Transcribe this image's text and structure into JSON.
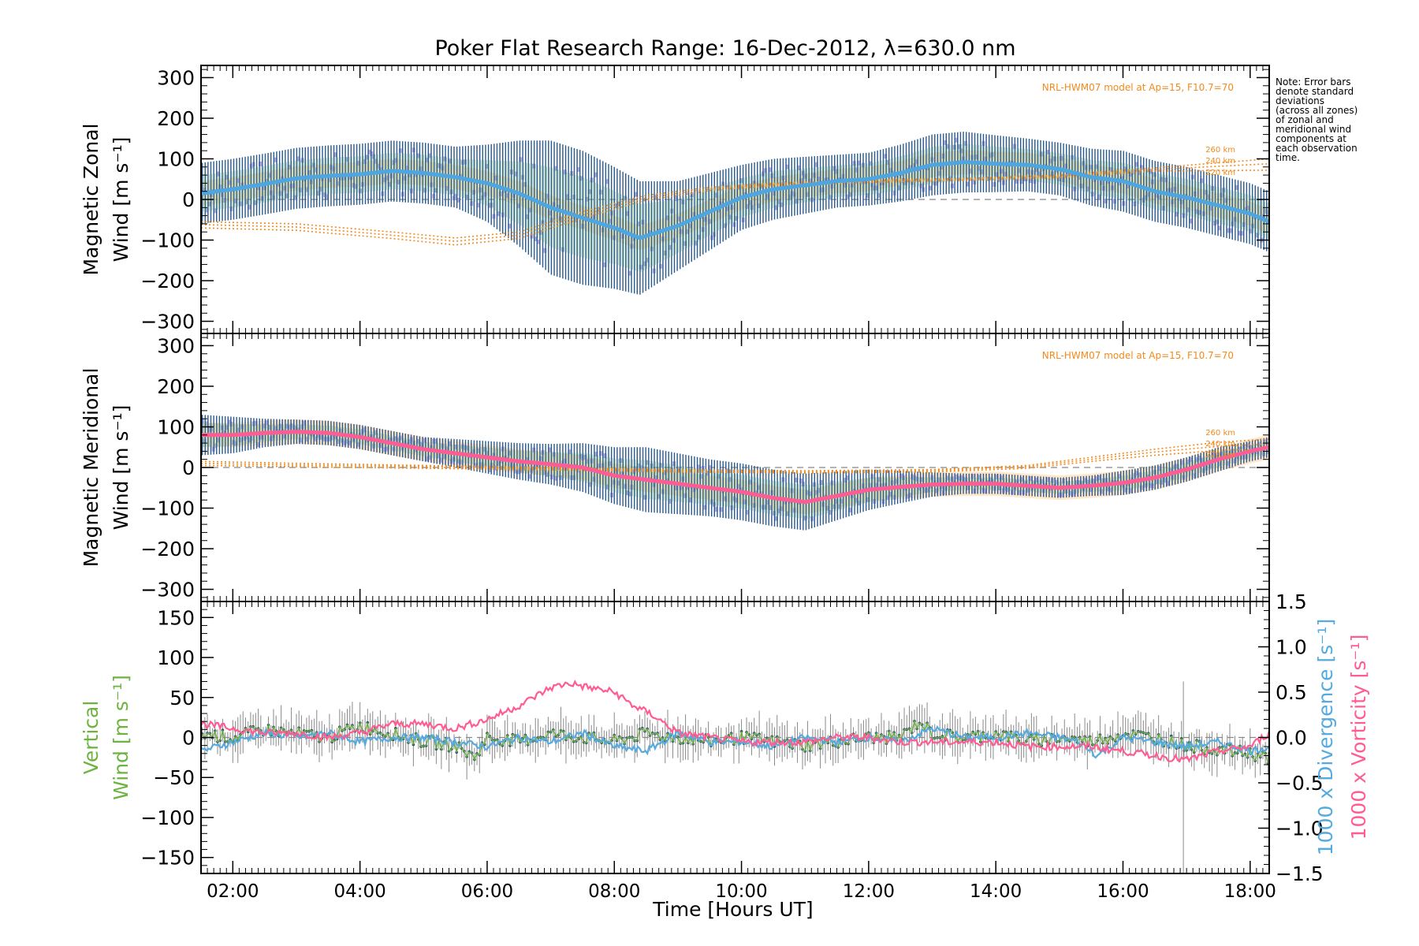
{
  "title": "Poker Flat Research Range: 16-Dec-2012, λ=630.0 nm",
  "note": [
    "Note: Error bars",
    "denote standard",
    "deviations",
    "(across all zones)",
    "of zonal and",
    "meridional wind",
    "components at",
    "each observation",
    "time."
  ],
  "xlabel": "Time [Hours UT]",
  "colors": {
    "zonal_mean": "#4da6e0",
    "meridional_mean": "#ff5c93",
    "error_bar": "#2a5a8c",
    "zone_scatter": "#b3abe6",
    "model": "#f28a1c",
    "vertical": "#6db33f",
    "divergence": "#55aadf",
    "vorticity": "#ff5c93",
    "zero_line": "#888888"
  },
  "chart_data": [
    {
      "type": "line",
      "panel": "zonal",
      "ylabel_line1": "Magnetic Zonal",
      "ylabel_line2": "Wind [m s⁻¹]",
      "ylim": [
        -330,
        330
      ],
      "yticks": [
        300,
        200,
        100,
        0,
        -100,
        -200,
        -300
      ],
      "xlim": [
        1.5,
        18.3
      ],
      "model_label": "NRL-HWM07 model at Ap=15, F10.7=70",
      "model_altitudes": [
        "260 km",
        "240 km",
        "220 km"
      ],
      "series": [
        {
          "role": "mean",
          "x": [
            1.5,
            2.0,
            2.5,
            3.0,
            3.5,
            4.0,
            4.5,
            5.0,
            5.5,
            6.0,
            6.5,
            7.0,
            7.5,
            8.0,
            8.4,
            9.0,
            9.5,
            10.0,
            10.5,
            11.0,
            11.5,
            12.0,
            12.5,
            13.0,
            13.5,
            14.0,
            14.5,
            15.0,
            15.5,
            16.0,
            16.5,
            17.0,
            17.5,
            18.0,
            18.3
          ],
          "values": [
            15,
            25,
            38,
            52,
            58,
            62,
            70,
            65,
            55,
            40,
            15,
            -20,
            -45,
            -70,
            -95,
            -65,
            -30,
            5,
            25,
            35,
            45,
            50,
            65,
            85,
            92,
            88,
            85,
            75,
            55,
            45,
            20,
            5,
            -15,
            -35,
            -55
          ],
          "spread": [
            75,
            75,
            75,
            75,
            75,
            75,
            75,
            75,
            75,
            95,
            130,
            165,
            165,
            150,
            140,
            110,
            95,
            80,
            75,
            70,
            65,
            65,
            70,
            75,
            75,
            70,
            65,
            65,
            70,
            75,
            75,
            75,
            75,
            75,
            75
          ]
        }
      ],
      "model": [
        {
          "altitude": "260 km",
          "x": [
            1.5,
            3,
            4.5,
            5.5,
            6.5,
            7.5,
            8.5,
            9.5,
            10.5,
            12,
            13.5,
            15,
            16.5,
            18.3
          ],
          "values": [
            -55,
            -60,
            -80,
            -95,
            -80,
            -30,
            10,
            30,
            40,
            48,
            52,
            60,
            78,
            100
          ]
        },
        {
          "altitude": "240 km",
          "x": [
            1.5,
            3,
            4.5,
            5.5,
            6.5,
            7.5,
            8.5,
            9.5,
            10.5,
            12,
            13.5,
            15,
            16.5,
            18.3
          ],
          "values": [
            -62,
            -68,
            -88,
            -103,
            -88,
            -38,
            4,
            26,
            37,
            45,
            50,
            57,
            74,
            88
          ]
        },
        {
          "altitude": "220 km",
          "x": [
            1.5,
            3,
            4.5,
            5.5,
            6.5,
            7.5,
            8.5,
            9.5,
            10.5,
            12,
            13.5,
            15,
            16.5,
            18.3
          ],
          "values": [
            -70,
            -76,
            -96,
            -112,
            -96,
            -46,
            -2,
            22,
            34,
            42,
            47,
            54,
            70,
            72
          ]
        }
      ]
    },
    {
      "type": "line",
      "panel": "meridional",
      "ylabel_line1": "Magnetic Meridional",
      "ylabel_line2": "Wind [m s⁻¹]",
      "ylim": [
        -330,
        330
      ],
      "yticks": [
        300,
        200,
        100,
        0,
        -100,
        -200,
        -300
      ],
      "xlim": [
        1.5,
        18.3
      ],
      "model_label": "NRL-HWM07 model at Ap=15, F10.7=70",
      "model_altitudes": [
        "260 km",
        "240 km",
        "220 km"
      ],
      "series": [
        {
          "role": "mean",
          "x": [
            1.5,
            2.0,
            2.5,
            3.0,
            3.5,
            4.0,
            4.5,
            5.0,
            5.5,
            6.0,
            6.5,
            7.0,
            7.5,
            8.0,
            8.5,
            9.0,
            9.5,
            10.0,
            10.5,
            11.0,
            11.5,
            12.0,
            12.5,
            13.0,
            13.5,
            14.0,
            14.5,
            15.0,
            15.5,
            16.0,
            16.5,
            17.0,
            17.5,
            18.0,
            18.3
          ],
          "values": [
            80,
            80,
            85,
            88,
            85,
            75,
            60,
            45,
            35,
            25,
            15,
            8,
            0,
            -20,
            -30,
            -40,
            -50,
            -60,
            -75,
            -85,
            -70,
            -55,
            -48,
            -42,
            -40,
            -40,
            -45,
            -50,
            -45,
            -38,
            -25,
            -5,
            20,
            40,
            50
          ],
          "spread": [
            50,
            45,
            35,
            30,
            30,
            30,
            30,
            30,
            35,
            40,
            45,
            50,
            60,
            70,
            80,
            75,
            70,
            70,
            70,
            70,
            60,
            50,
            40,
            30,
            25,
            25,
            25,
            25,
            25,
            30,
            30,
            30,
            30,
            25,
            25
          ]
        }
      ],
      "model": [
        {
          "altitude": "260 km",
          "x": [
            1.5,
            3,
            5,
            7,
            9,
            11,
            13,
            14.5,
            15.5,
            16.5,
            17.5,
            18.3
          ],
          "values": [
            15,
            10,
            5,
            0,
            -5,
            -8,
            -5,
            5,
            25,
            45,
            62,
            70
          ]
        },
        {
          "altitude": "240 km",
          "x": [
            1.5,
            3,
            5,
            7,
            9,
            11,
            13,
            14.5,
            15.5,
            16.5,
            17.5,
            18.3
          ],
          "values": [
            10,
            6,
            2,
            -3,
            -8,
            -11,
            -8,
            2,
            20,
            38,
            52,
            58
          ]
        },
        {
          "altitude": "220 km",
          "x": [
            1.5,
            3,
            5,
            7,
            9,
            11,
            13,
            14.5,
            15.5,
            16.5,
            17.5,
            18.3
          ],
          "values": [
            5,
            2,
            -2,
            -6,
            -11,
            -14,
            -11,
            -2,
            15,
            30,
            42,
            46
          ]
        }
      ]
    },
    {
      "type": "line",
      "panel": "vertical",
      "ylabel_line1": "Vertical",
      "ylabel_line2": "Wind [m s⁻¹]",
      "ylim": [
        -170,
        170
      ],
      "yticks": [
        150,
        100,
        50,
        0,
        -50,
        -100,
        -150
      ],
      "y2label_divergence": "1000 x Divergence [s⁻¹]",
      "y2label_vorticity": "1000 x Vorticity [s⁻¹]",
      "y2lim": [
        -1.5,
        1.5
      ],
      "y2ticks": [
        1.5,
        1.0,
        0.5,
        0.0,
        -0.5,
        -1.0,
        -1.5
      ],
      "y2tick_labels": [
        "1.5",
        "1.0",
        "0.5",
        "0.0",
        "−0.5",
        "−1.0",
        "−1.5"
      ],
      "xlim": [
        1.5,
        18.3
      ],
      "xticks": [
        2,
        4,
        6,
        8,
        10,
        12,
        14,
        16,
        18
      ],
      "xtick_labels": [
        "02:00",
        "04:00",
        "06:00",
        "08:00",
        "10:00",
        "12:00",
        "14:00",
        "16:00",
        "18:00"
      ],
      "series": [
        {
          "name": "Vertical",
          "axis": "left",
          "x": [
            1.5,
            2,
            2.5,
            3,
            3.5,
            4,
            4.5,
            5,
            5.5,
            5.8,
            6,
            6.5,
            7,
            7.5,
            8,
            8.5,
            9,
            9.5,
            10,
            10.5,
            11,
            11.5,
            12,
            12.5,
            12.8,
            13,
            13.5,
            14,
            14.5,
            15,
            15.5,
            16,
            16.5,
            17,
            17.5,
            18,
            18.3
          ],
          "values": [
            5,
            0,
            10,
            5,
            0,
            15,
            5,
            -5,
            -10,
            -25,
            0,
            -5,
            5,
            0,
            -5,
            5,
            0,
            -5,
            0,
            -5,
            -10,
            -5,
            0,
            0,
            20,
            5,
            0,
            5,
            -5,
            0,
            -5,
            5,
            0,
            -10,
            -15,
            -20,
            -25
          ]
        },
        {
          "name": "1000 x Divergence",
          "axis": "right",
          "x": [
            1.5,
            2,
            2.5,
            3,
            3.5,
            4,
            4.5,
            5,
            5.5,
            6,
            6.5,
            7,
            7.5,
            8,
            8.5,
            9,
            9.5,
            10,
            10.5,
            11,
            11.5,
            12,
            12.5,
            13,
            13.5,
            14,
            14.5,
            15,
            15.3,
            15.6,
            16,
            16.5,
            17,
            17.5,
            18,
            18.3
          ],
          "values": [
            -0.15,
            -0.05,
            0.05,
            0.0,
            0.05,
            -0.05,
            0.0,
            0.0,
            -0.05,
            -0.1,
            0.0,
            -0.05,
            0.05,
            -0.1,
            -0.15,
            0.05,
            -0.05,
            -0.05,
            -0.1,
            0.0,
            -0.05,
            0.0,
            -0.05,
            0.1,
            0.0,
            0.0,
            0.05,
            0.0,
            -0.05,
            -0.2,
            0.0,
            -0.05,
            -0.1,
            -0.05,
            -0.15,
            -0.1
          ]
        },
        {
          "name": "1000 x Vorticity",
          "axis": "right",
          "x": [
            1.5,
            2,
            2.5,
            3,
            3.5,
            4,
            4.5,
            5,
            5.5,
            6,
            6.5,
            7,
            7.3,
            7.6,
            8,
            8.3,
            8.6,
            9,
            9.5,
            10,
            10.5,
            11,
            11.5,
            12,
            12.5,
            13,
            13.5,
            14,
            14.5,
            15,
            15.5,
            16,
            16.5,
            17,
            17.5,
            18,
            18.3
          ],
          "values": [
            0.15,
            0.1,
            0.05,
            0.05,
            0.0,
            0.05,
            0.15,
            0.15,
            0.1,
            0.2,
            0.35,
            0.55,
            0.6,
            0.55,
            0.5,
            0.35,
            0.25,
            0.05,
            0.0,
            -0.05,
            -0.05,
            -0.05,
            0.0,
            0.0,
            -0.05,
            -0.05,
            -0.05,
            -0.05,
            -0.1,
            -0.1,
            -0.1,
            -0.15,
            -0.2,
            -0.25,
            -0.15,
            -0.1,
            0.05
          ]
        }
      ]
    }
  ]
}
